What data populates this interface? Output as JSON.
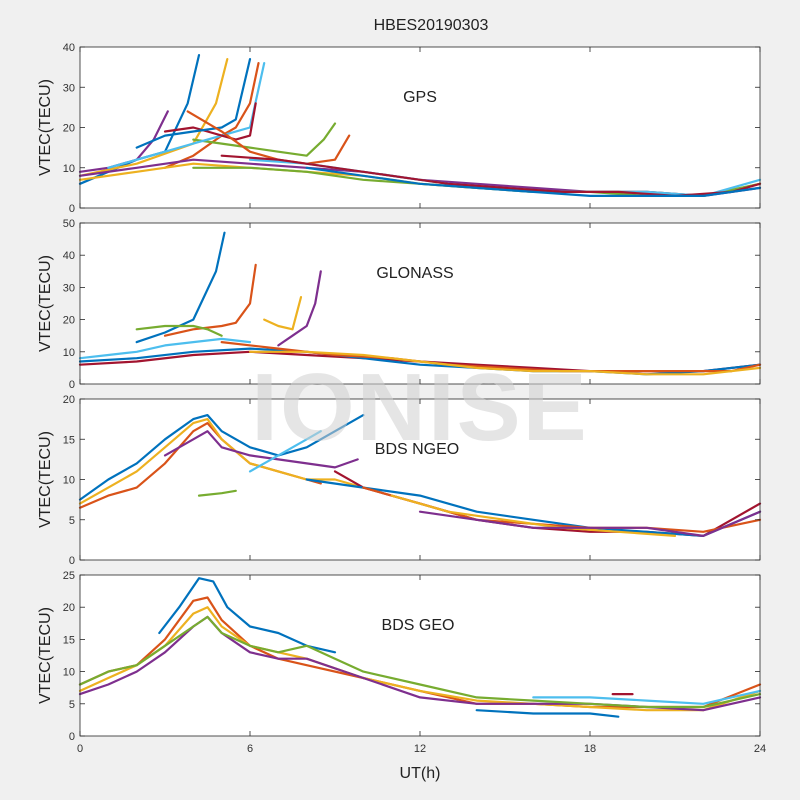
{
  "title": "HBES20190303",
  "watermark": "IONISE",
  "colors": [
    "#0072BD",
    "#D95319",
    "#EDB120",
    "#7E2F8E",
    "#77AC30",
    "#4DBEEE",
    "#A2142F"
  ],
  "chart_data": [
    {
      "type": "line",
      "panel_label": "GPS",
      "ylabel": "VTEC(TECU)",
      "xlim": [
        0,
        24
      ],
      "ylim": [
        0,
        40
      ],
      "yticks": [
        0,
        10,
        20,
        30,
        40
      ],
      "series": [
        {
          "x": [
            0,
            1,
            2,
            3,
            3.8,
            4.2
          ],
          "y": [
            6,
            9,
            12,
            14,
            26,
            38
          ]
        },
        {
          "x": [
            3,
            4,
            5,
            5.5,
            6,
            6.3
          ],
          "y": [
            10,
            13,
            18,
            20,
            26,
            36
          ]
        },
        {
          "x": [
            0,
            2,
            4,
            4.8,
            5.2
          ],
          "y": [
            8,
            11,
            16,
            26,
            37
          ]
        },
        {
          "x": [
            0,
            1,
            2,
            2.6,
            3.1
          ],
          "y": [
            9,
            10,
            12,
            17,
            24
          ]
        },
        {
          "x": [
            4,
            5,
            6,
            7,
            8,
            8.6,
            9
          ],
          "y": [
            17,
            16,
            15,
            14,
            13,
            17,
            21
          ]
        },
        {
          "x": [
            1,
            2,
            3,
            4,
            5,
            6,
            6.5
          ],
          "y": [
            10,
            12,
            14,
            16,
            18,
            20,
            36
          ]
        },
        {
          "x": [
            3,
            4,
            4.5,
            5,
            5.5,
            6,
            6.2
          ],
          "y": [
            19,
            20,
            19,
            18,
            17,
            18,
            26
          ]
        },
        {
          "x": [
            2,
            3,
            4,
            5,
            5.5,
            6
          ],
          "y": [
            15,
            18,
            19,
            20,
            22,
            37
          ]
        },
        {
          "x": [
            3.8,
            5,
            6,
            7,
            8,
            9,
            9.5
          ],
          "y": [
            24,
            19,
            14,
            12,
            11,
            12,
            18
          ]
        },
        {
          "x": [
            0,
            2,
            4,
            6,
            8,
            10,
            12,
            14,
            16,
            18,
            20,
            22,
            24
          ],
          "y": [
            7,
            9,
            11,
            10,
            9,
            8,
            6,
            5,
            4,
            4,
            4,
            3,
            6
          ]
        },
        {
          "x": [
            0,
            2,
            4,
            6,
            8,
            10,
            12,
            14,
            16,
            18,
            20,
            22,
            24
          ],
          "y": [
            8,
            10,
            12,
            11,
            10,
            9,
            7,
            6,
            5,
            4,
            4,
            3,
            5
          ]
        },
        {
          "x": [
            4,
            6,
            8,
            10,
            12,
            14,
            16,
            18,
            20,
            22,
            24
          ],
          "y": [
            10,
            10,
            9,
            7,
            6,
            5,
            4,
            4,
            3,
            3,
            6
          ]
        },
        {
          "x": [
            6,
            8,
            10,
            12,
            14,
            16,
            18,
            20,
            22,
            24
          ],
          "y": [
            12,
            11,
            9,
            7,
            5,
            4,
            4,
            4,
            3,
            7
          ]
        },
        {
          "x": [
            5,
            7,
            9,
            11,
            13,
            15,
            17,
            19,
            21,
            23,
            24
          ],
          "y": [
            13,
            12,
            10,
            8,
            6,
            5,
            4,
            4,
            3,
            4,
            6
          ]
        },
        {
          "x": [
            8,
            10,
            12,
            14,
            16,
            18,
            20,
            22,
            24
          ],
          "y": [
            10,
            8,
            6,
            5,
            4,
            3,
            3,
            3,
            5
          ]
        }
      ]
    },
    {
      "type": "line",
      "panel_label": "GLONASS",
      "ylabel": "VTEC(TECU)",
      "xlim": [
        0,
        24
      ],
      "ylim": [
        0,
        50
      ],
      "yticks": [
        0,
        10,
        20,
        30,
        40,
        50
      ],
      "series": [
        {
          "x": [
            2,
            3,
            4,
            4.8,
            5.1
          ],
          "y": [
            13,
            16,
            20,
            35,
            47
          ]
        },
        {
          "x": [
            3,
            4,
            5,
            5.5,
            6,
            6.2
          ],
          "y": [
            15,
            17,
            18,
            19,
            25,
            37
          ]
        },
        {
          "x": [
            6.5,
            7,
            7.5,
            7.8
          ],
          "y": [
            20,
            18,
            17,
            27
          ]
        },
        {
          "x": [
            7,
            7.5,
            8,
            8.3,
            8.5
          ],
          "y": [
            12,
            15,
            18,
            25,
            35
          ]
        },
        {
          "x": [
            2,
            3,
            4,
            4.5,
            5
          ],
          "y": [
            17,
            18,
            18,
            17,
            15
          ]
        },
        {
          "x": [
            0,
            1,
            2,
            3,
            4,
            5,
            6
          ],
          "y": [
            8,
            9,
            10,
            12,
            13,
            14,
            13
          ]
        },
        {
          "x": [
            0,
            2,
            4,
            6,
            8,
            10,
            12,
            14,
            16,
            18,
            20,
            22,
            24
          ],
          "y": [
            6,
            7,
            9,
            10,
            9,
            8,
            7,
            6,
            5,
            4,
            4,
            4,
            6
          ]
        },
        {
          "x": [
            0,
            2,
            4,
            6,
            8,
            10,
            12,
            14,
            16,
            18,
            20,
            22,
            24
          ],
          "y": [
            7,
            8,
            10,
            11,
            10,
            8,
            6,
            5,
            4,
            4,
            3,
            4,
            6
          ]
        },
        {
          "x": [
            5,
            7,
            9,
            11,
            13,
            15,
            17,
            19,
            21,
            23,
            24
          ],
          "y": [
            13,
            11,
            9,
            8,
            6,
            5,
            4,
            4,
            4,
            4,
            6
          ]
        },
        {
          "x": [
            6,
            8,
            10,
            12,
            14,
            16,
            18,
            20,
            22,
            24
          ],
          "y": [
            10,
            10,
            9,
            7,
            5,
            4,
            4,
            3,
            3,
            5
          ]
        }
      ]
    },
    {
      "type": "line",
      "panel_label": "BDS NGEO",
      "ylabel": "VTEC(TECU)",
      "xlim": [
        0,
        24
      ],
      "ylim": [
        0,
        20
      ],
      "yticks": [
        0,
        5,
        10,
        15,
        20
      ],
      "series": [
        {
          "x": [
            0,
            1,
            2,
            3,
            4,
            4.5,
            5,
            6,
            7,
            8,
            9,
            10
          ],
          "y": [
            7.5,
            10,
            12,
            15,
            17.5,
            18,
            16,
            14,
            13,
            14,
            16,
            18
          ]
        },
        {
          "x": [
            0,
            1,
            2,
            3,
            4,
            4.5,
            5,
            6,
            7,
            8,
            8.5
          ],
          "y": [
            6.5,
            8,
            9,
            12,
            16,
            17,
            15,
            12,
            11,
            10,
            9.5
          ]
        },
        {
          "x": [
            0,
            1,
            2,
            3,
            4,
            4.5,
            5,
            6,
            7,
            8,
            9,
            10
          ],
          "y": [
            7,
            9,
            11,
            14,
            17,
            17.5,
            15,
            12,
            11,
            10,
            10,
            9
          ]
        },
        {
          "x": [
            3,
            4,
            4.5,
            5,
            6,
            7,
            8,
            9,
            9.8
          ],
          "y": [
            13,
            15,
            16,
            14,
            13,
            12.5,
            12,
            11.5,
            12.5
          ]
        },
        {
          "x": [
            4.2,
            5,
            5.5
          ],
          "y": [
            8,
            8.3,
            8.6
          ]
        },
        {
          "x": [
            6,
            7,
            8,
            8.5
          ],
          "y": [
            11,
            13,
            15,
            16
          ]
        },
        {
          "x": [
            9,
            10,
            12,
            14,
            16,
            18,
            20,
            22,
            24
          ],
          "y": [
            11,
            9,
            7,
            5,
            4,
            3.5,
            3.5,
            3,
            7
          ]
        },
        {
          "x": [
            8,
            10,
            12,
            14,
            16,
            18,
            20,
            22,
            24
          ],
          "y": [
            10,
            9,
            8,
            6,
            5,
            4,
            3.5,
            3,
            6
          ]
        },
        {
          "x": [
            10,
            12,
            14,
            16,
            18,
            20,
            22,
            24
          ],
          "y": [
            9,
            7,
            5,
            4.5,
            4,
            4,
            3.5,
            5
          ]
        },
        {
          "x": [
            11,
            13,
            15,
            17,
            19,
            21
          ],
          "y": [
            8,
            6,
            5,
            4,
            3.5,
            3
          ]
        },
        {
          "x": [
            12,
            14,
            16,
            18,
            20,
            22,
            24
          ],
          "y": [
            6,
            5,
            4,
            4,
            4,
            3,
            6
          ]
        }
      ]
    },
    {
      "type": "line",
      "panel_label": "BDS GEO",
      "ylabel": "VTEC(TECU)",
      "xlim": [
        0,
        24
      ],
      "ylim": [
        0,
        25
      ],
      "yticks": [
        0,
        5,
        10,
        15,
        20,
        25
      ],
      "series": [
        {
          "x": [
            2.8,
            3.5,
            4.2,
            4.7,
            5.2,
            6,
            7,
            8,
            9
          ],
          "y": [
            16,
            20,
            24.5,
            24,
            20,
            17,
            16,
            14,
            13
          ]
        },
        {
          "x": [
            0,
            1,
            2,
            3,
            4,
            4.5,
            5,
            6,
            7,
            8,
            10,
            12,
            14,
            16,
            18,
            20,
            22,
            24
          ],
          "y": [
            8,
            10,
            11,
            15,
            21,
            21.5,
            18,
            14,
            12,
            11,
            9,
            7,
            5,
            5,
            4.5,
            4.5,
            4.5,
            8
          ]
        },
        {
          "x": [
            0,
            1,
            2,
            3,
            4,
            4.5,
            5,
            6,
            7,
            8,
            10,
            12,
            14,
            16,
            18,
            20,
            22,
            24
          ],
          "y": [
            7,
            9,
            11,
            14,
            19,
            20,
            17,
            14,
            13,
            12,
            9,
            7,
            5.5,
            5,
            4.5,
            4,
            4,
            7
          ]
        },
        {
          "x": [
            0,
            1,
            2,
            3,
            4,
            4.5,
            5,
            6,
            7,
            8,
            10,
            12,
            14,
            16,
            18,
            20,
            22,
            24
          ],
          "y": [
            6.5,
            8,
            10,
            13,
            17,
            18.5,
            16,
            13,
            12,
            12,
            9,
            6,
            5,
            5,
            5,
            4.5,
            4,
            6
          ]
        },
        {
          "x": [
            0,
            1,
            2,
            3,
            4,
            4.5,
            5,
            6,
            7,
            8,
            9,
            10,
            12,
            14,
            16,
            18,
            20,
            22,
            24
          ],
          "y": [
            8,
            10,
            11,
            14,
            17,
            18.5,
            16,
            14,
            13,
            14,
            12,
            10,
            8,
            6,
            5.5,
            5,
            4.5,
            4.5,
            6.5
          ]
        },
        {
          "x": [
            16,
            18,
            20,
            22,
            24
          ],
          "y": [
            6,
            6,
            5.5,
            5,
            7
          ]
        },
        {
          "x": [
            18.8,
            19.5
          ],
          "y": [
            6.5,
            6.5
          ]
        },
        {
          "x": [
            14,
            16,
            18,
            19
          ],
          "y": [
            4,
            3.5,
            3.5,
            3
          ]
        }
      ]
    }
  ],
  "xaxis": {
    "label": "UT(h)",
    "xlim": [
      0,
      24
    ],
    "xticks": [
      0,
      6,
      12,
      18,
      24
    ]
  }
}
